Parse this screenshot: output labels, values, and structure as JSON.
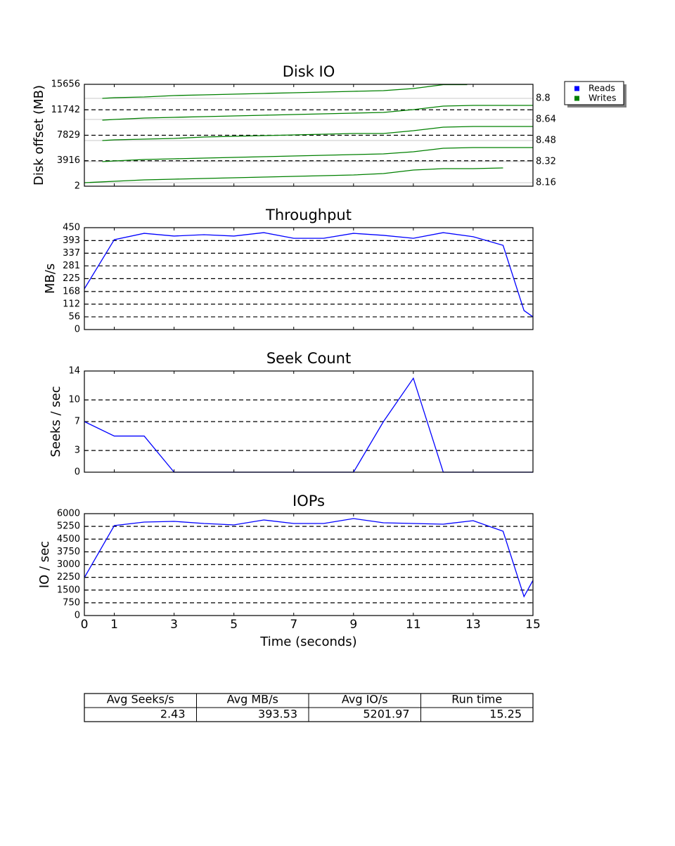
{
  "chart_data": [
    {
      "type": "line",
      "title": "Disk IO",
      "ylabel": "Disk offset (MB)",
      "xlim": [
        0,
        15
      ],
      "xticks": [
        0,
        1,
        3,
        5,
        7,
        9,
        11,
        13,
        15
      ],
      "ylim": [
        2,
        15656
      ],
      "yticks": [
        2,
        3916,
        7829,
        11742,
        15656
      ],
      "y2lim": [
        8.133,
        8.907
      ],
      "y2ticks": [
        8.16,
        8.32,
        8.48,
        8.64,
        8.8
      ],
      "grid": true,
      "legend": "outside-right",
      "series": [
        {
          "name": "Reads",
          "color": "#0000ff",
          "x": [],
          "values": []
        },
        {
          "name": "Writes",
          "color": "#008000",
          "x": [
            0,
            1,
            2,
            3,
            4,
            5,
            6,
            7,
            8,
            9,
            10,
            11,
            12,
            13,
            14,
            14.5,
            0.6,
            1,
            2,
            3,
            4,
            5,
            6,
            7,
            8,
            9,
            10,
            11,
            12,
            13,
            14,
            15,
            15,
            0.6,
            1,
            2,
            3,
            4,
            5,
            6,
            7,
            8,
            9,
            10,
            11,
            12,
            13,
            14,
            15,
            15,
            0.6,
            1,
            2,
            3,
            4,
            5,
            6,
            7,
            8,
            9,
            10,
            11,
            12,
            13,
            14,
            15,
            15,
            0.6,
            1,
            2,
            3,
            4,
            5,
            6,
            7,
            8,
            9,
            10,
            11,
            12,
            12.8
          ],
          "values": [
            540,
            756,
            972,
            1080,
            1188,
            1296,
            1404,
            1512,
            1620,
            1728,
            1944,
            2484,
            2700,
            2700,
            2808,
            null,
            3780,
            3888,
            4104,
            4212,
            4320,
            4428,
            4536,
            4644,
            4752,
            4860,
            4968,
            5292,
            5832,
            5940,
            5940,
            5940,
            null,
            7020,
            7128,
            7236,
            7344,
            7560,
            7668,
            7776,
            7884,
            7992,
            8100,
            8100,
            8532,
            9072,
            9180,
            9180,
            9180,
            null,
            10152,
            10260,
            10476,
            10584,
            10692,
            10800,
            10908,
            11016,
            11124,
            11232,
            11340,
            11772,
            12312,
            12420,
            12420,
            12420,
            null,
            13500,
            13608,
            13716,
            13932,
            14040,
            14148,
            14256,
            14364,
            14472,
            14580,
            14688,
            15012,
            15600,
            15600
          ]
        }
      ]
    },
    {
      "type": "line",
      "title": "Throughput",
      "ylabel": "MB/s",
      "xlim": [
        0,
        15
      ],
      "xticks": [
        0,
        1,
        3,
        5,
        7,
        9,
        11,
        13,
        15
      ],
      "ylim": [
        0,
        450
      ],
      "yticks": [
        0,
        56,
        112,
        168,
        225,
        281,
        337,
        393,
        450
      ],
      "grid": true,
      "series": [
        {
          "name": "Throughput",
          "color": "#0000ff",
          "x": [
            0,
            1,
            2,
            3,
            4,
            5,
            6,
            7,
            8,
            9,
            10,
            11,
            12,
            13,
            14,
            14.7,
            15
          ],
          "values": [
            180,
            397,
            425,
            413,
            419,
            413,
            428,
            403,
            403,
            425,
            416,
            403,
            428,
            410,
            372,
            84,
            56
          ]
        }
      ]
    },
    {
      "type": "line",
      "title": "Seek Count",
      "ylabel": "Seeks / sec",
      "xlim": [
        0,
        15
      ],
      "xticks": [
        0,
        1,
        3,
        5,
        7,
        9,
        11,
        13,
        15
      ],
      "ylim": [
        0,
        14
      ],
      "yticks": [
        0,
        3,
        7,
        10,
        14
      ],
      "grid": true,
      "series": [
        {
          "name": "Seek Count",
          "color": "#0000ff",
          "x": [
            0,
            1,
            2,
            3,
            4,
            5,
            6,
            7,
            8,
            9,
            10,
            11,
            12,
            13,
            14,
            15
          ],
          "values": [
            7,
            5,
            5,
            0,
            0,
            0,
            0,
            0,
            0,
            0,
            7,
            13,
            0,
            0,
            0,
            0
          ]
        }
      ]
    },
    {
      "type": "line",
      "title": "IOPs",
      "ylabel": "IO / sec",
      "xlabel": "Time (seconds)",
      "xlim": [
        0,
        15
      ],
      "xticks": [
        0,
        1,
        3,
        5,
        7,
        9,
        11,
        13,
        15
      ],
      "ylim": [
        0,
        6000
      ],
      "yticks": [
        0,
        750,
        1500,
        2250,
        3000,
        3750,
        4500,
        5250,
        6000
      ],
      "grid": true,
      "series": [
        {
          "name": "IOPs",
          "color": "#0000ff",
          "x": [
            0,
            1,
            2,
            3,
            4,
            5,
            6,
            7,
            8,
            9,
            10,
            11,
            12,
            13,
            14,
            14.7,
            15
          ],
          "values": [
            2235,
            5297,
            5504,
            5545,
            5421,
            5338,
            5628,
            5421,
            5421,
            5710,
            5462,
            5421,
            5380,
            5586,
            4966,
            1117,
            2069
          ]
        }
      ]
    }
  ],
  "table": {
    "columns": [
      "Avg Seeks/s",
      "Avg MB/s",
      "Avg IO/s",
      "Run time"
    ],
    "rows": [
      [
        2.43,
        393.53,
        5201.97,
        15.25
      ]
    ]
  }
}
